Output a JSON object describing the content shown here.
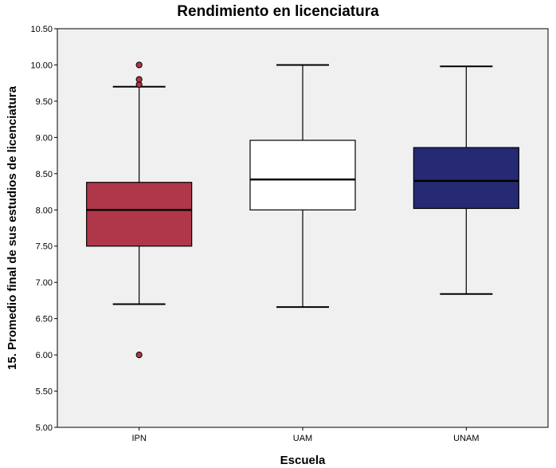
{
  "chart_data": {
    "type": "boxplot",
    "title": "Rendimiento en licenciatura",
    "xlabel": "Escuela",
    "ylabel": "15. Promedio final de sus estudios de licenciatura",
    "ylim": [
      5.0,
      10.5
    ],
    "yticks": [
      "5.00",
      "5.50",
      "6.00",
      "6.50",
      "7.00",
      "7.50",
      "8.00",
      "8.50",
      "9.00",
      "9.50",
      "10.00",
      "10.50"
    ],
    "categories": [
      "IPN",
      "UAM",
      "UNAM"
    ],
    "boxes": [
      {
        "category": "IPN",
        "whisker_low": 6.7,
        "q1": 7.5,
        "median": 8.0,
        "q3": 8.38,
        "whisker_high": 9.7,
        "outliers": [
          6.0,
          9.73,
          9.8,
          10.0
        ],
        "color": "#b0364a"
      },
      {
        "category": "UAM",
        "whisker_low": 6.66,
        "q1": 8.0,
        "median": 8.42,
        "q3": 8.96,
        "whisker_high": 10.0,
        "outliers": [],
        "color": "#ffffff"
      },
      {
        "category": "UNAM",
        "whisker_low": 6.84,
        "q1": 8.02,
        "median": 8.4,
        "q3": 8.86,
        "whisker_high": 9.98,
        "outliers": [],
        "color": "#262a73"
      }
    ],
    "plot_background": "#f0f0f0",
    "grid": false,
    "legend": "none"
  }
}
